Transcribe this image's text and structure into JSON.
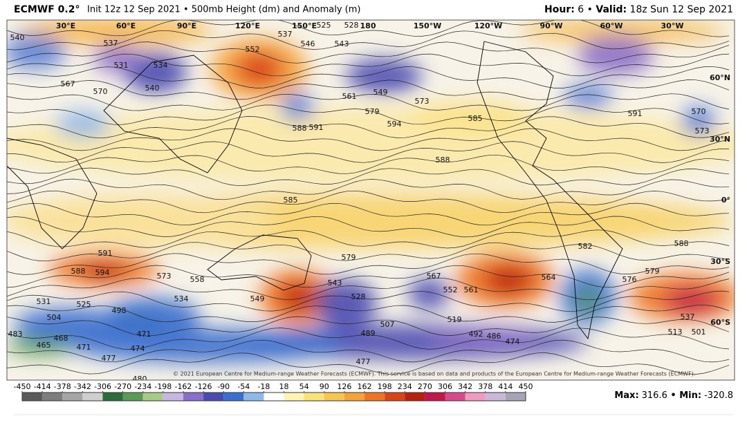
{
  "header": {
    "model": "ECMWF 0.2°",
    "description": "Init 12z 12 Sep 2021 • 500mb Height (dm) and Anomaly (m)",
    "hour_label": "Hour:",
    "hour": " 6 • ",
    "valid_label": "Valid:",
    "valid": " 18z Sun 12 Sep 2021"
  },
  "map": {
    "longitude_labels": [
      "30°E",
      "60°E",
      "90°E",
      "120°E",
      "150°E",
      "180",
      "150°W",
      "120°W",
      "90°W",
      "60°W",
      "30°W"
    ],
    "latitude_labels": [
      "60°N",
      "30°N",
      "0°",
      "30°S",
      "60°S"
    ],
    "contour_labels": [
      540,
      537,
      534,
      531,
      540,
      567,
      570,
      552,
      537,
      546,
      543,
      525,
      528,
      549,
      561,
      579,
      573,
      594,
      585,
      588,
      591,
      588,
      591,
      570,
      573,
      585,
      579,
      591,
      594,
      588,
      573,
      558,
      534,
      531,
      525,
      504,
      498,
      483,
      465,
      468,
      471,
      477,
      474,
      471,
      480,
      543,
      528,
      549,
      567,
      561,
      552,
      519,
      492,
      486,
      474,
      507,
      489,
      477,
      537,
      513,
      501,
      588,
      582,
      579,
      576,
      564
    ],
    "copyright": "© 2021 European Centre for Medium-range Weather Forecasts (ECMWF). This service is based on data and products of the European Centre for Medium-range Weather Forecasts (ECMWF)."
  },
  "colorbar": {
    "ticks": [
      -450,
      -414,
      -378,
      -342,
      -306,
      -270,
      -234,
      -198,
      -162,
      -126,
      -90,
      -54,
      -18,
      18,
      54,
      90,
      126,
      162,
      198,
      234,
      270,
      306,
      342,
      378,
      414,
      450
    ],
    "colors": [
      "#5a5a5a",
      "#7d7d7d",
      "#a5a5a5",
      "#cfcfcf",
      "#2e6b3a",
      "#5a9a55",
      "#a8c98a",
      "#c6b7e0",
      "#8a6fc8",
      "#4a4bb0",
      "#3a6fcf",
      "#8fb7e8",
      "#ffffff",
      "#fdf3b3",
      "#f9e27a",
      "#f7c64f",
      "#f4a23a",
      "#ee7526",
      "#d94417",
      "#b8200f",
      "#c0184a",
      "#d9498a",
      "#f09ac0",
      "#c9b8d6",
      "#a8a4b8"
    ]
  },
  "stats": {
    "max_label": "Max:",
    "max": 316.6,
    "min_label": " • Min:",
    "min": -320.8
  }
}
